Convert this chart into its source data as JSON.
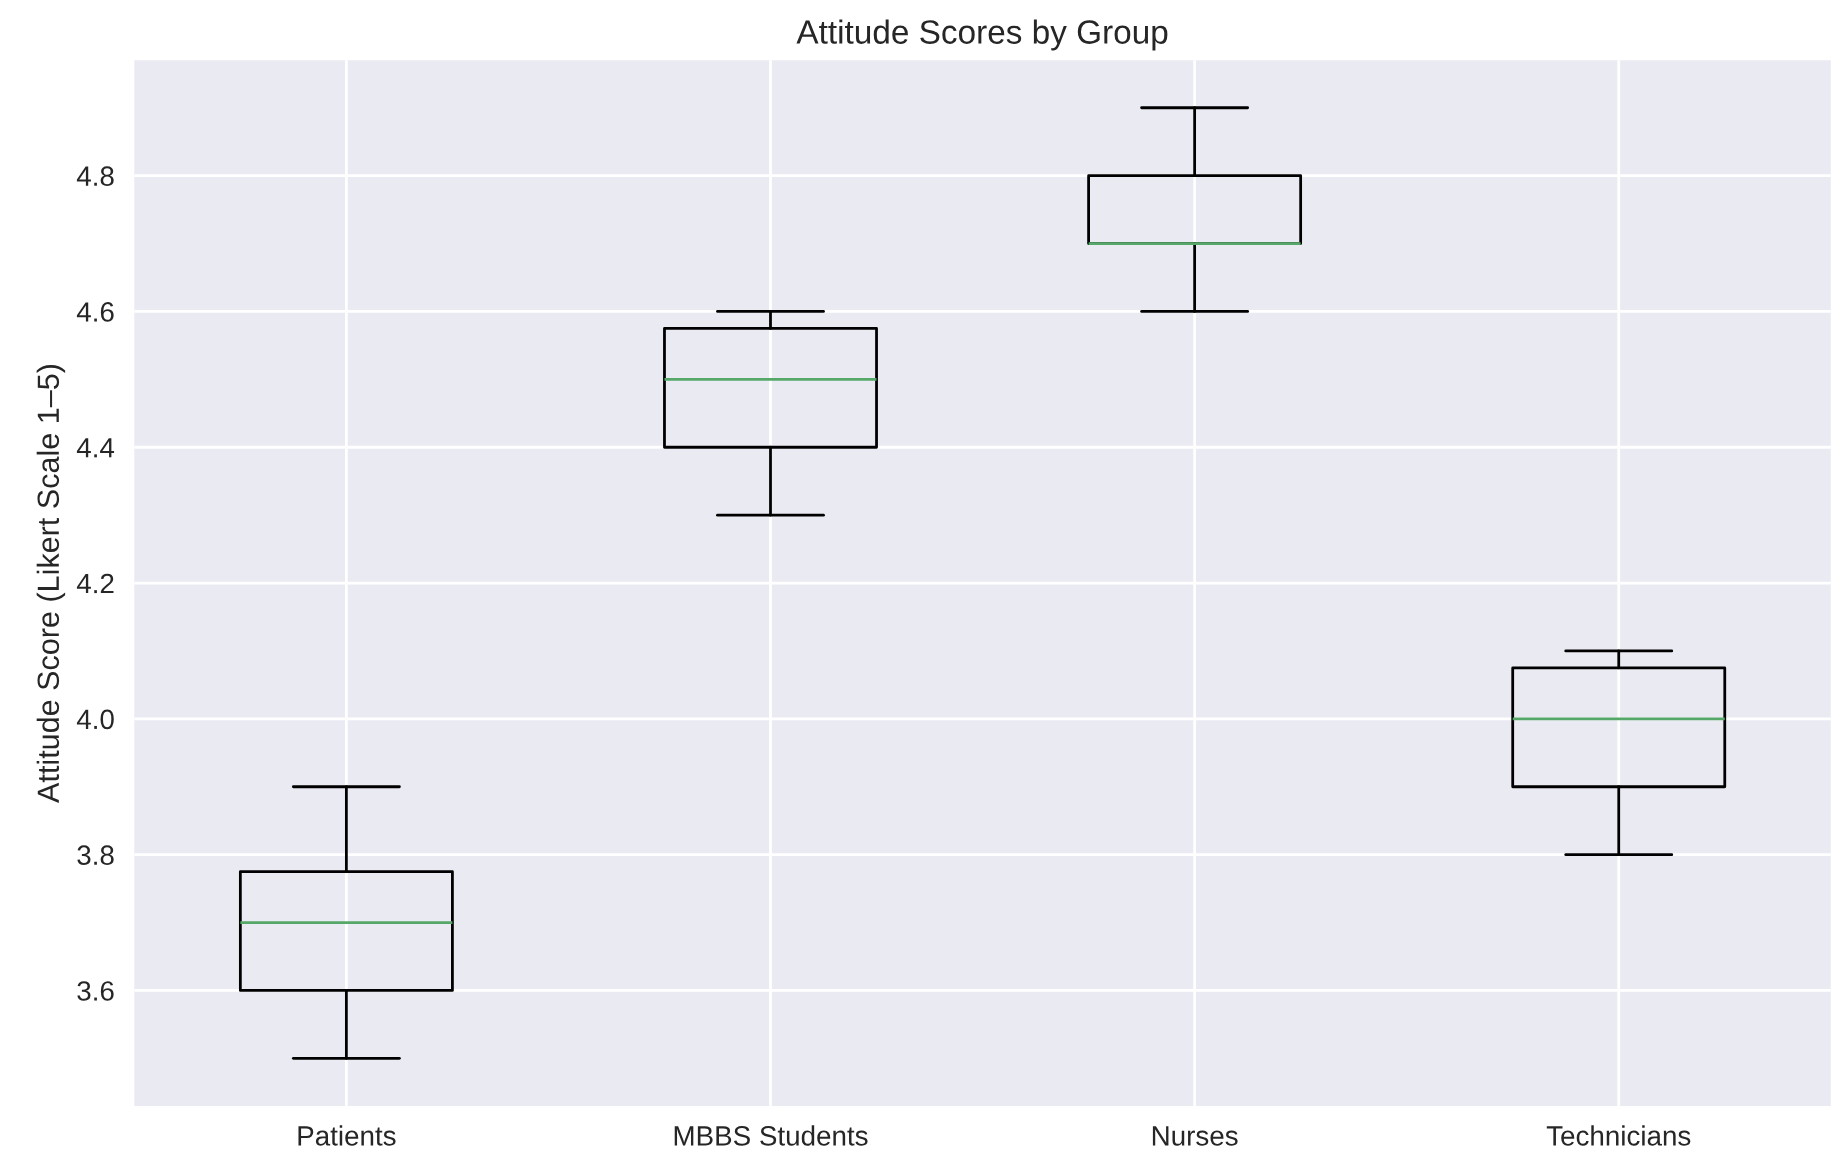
{
  "chart_data": {
    "type": "box",
    "title": "Attitude Scores by Group",
    "ylabel": "Attitude Score (Likert Scale 1–5)",
    "categories": [
      "Patients",
      "MBBS Students",
      "Nurses",
      "Technicians"
    ],
    "boxes": [
      {
        "low": 3.5,
        "q1": 3.6,
        "median": 3.7,
        "q3": 3.775,
        "high": 3.9
      },
      {
        "low": 4.3,
        "q1": 4.4,
        "median": 4.5,
        "q3": 4.575,
        "high": 4.6
      },
      {
        "low": 4.6,
        "q1": 4.7,
        "median": 4.7,
        "q3": 4.8,
        "high": 4.9
      },
      {
        "low": 3.8,
        "q1": 3.9,
        "median": 4.0,
        "q3": 4.075,
        "high": 4.1
      }
    ],
    "color": "#000000",
    "ylim": [
      3.43,
      4.97
    ],
    "yticks": [
      3.6,
      3.8,
      {
        "value": 4,
        "label": "4.0"
      },
      4.2,
      4.4,
      4.6,
      4.8
    ],
    "grid": true
  }
}
